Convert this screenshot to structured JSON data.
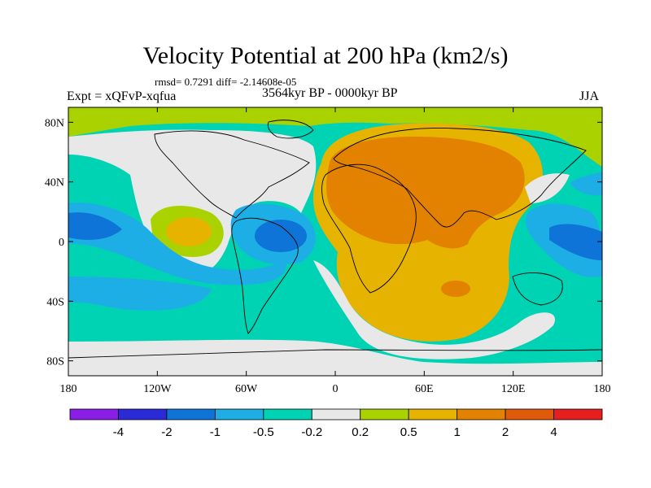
{
  "title": "Velocity Potential at 200 hPa (km2/s)",
  "stats": "rmsd= 0.7291 diff= -2.14608e-05",
  "experiment": "Expt = xQFvP-xqfua",
  "period": "3564kyr BP - 0000kyr BP",
  "season": "JJA",
  "map": {
    "lat_range": [
      -90,
      90
    ],
    "lon_range": [
      -180,
      180
    ],
    "lat_ticks": [
      {
        "value": 80,
        "label": "80N"
      },
      {
        "value": 40,
        "label": "40N"
      },
      {
        "value": 0,
        "label": "0"
      },
      {
        "value": -40,
        "label": "40S"
      },
      {
        "value": -80,
        "label": "80S"
      }
    ],
    "lon_ticks": [
      {
        "value": -180,
        "label": "180"
      },
      {
        "value": -120,
        "label": "120W"
      },
      {
        "value": -60,
        "label": "60W"
      },
      {
        "value": 0,
        "label": "0"
      },
      {
        "value": 60,
        "label": "60E"
      },
      {
        "value": 120,
        "label": "120E"
      },
      {
        "value": 180,
        "label": "180"
      }
    ]
  },
  "colorbar": {
    "colors": [
      "#8a1ee6",
      "#2a2ad6",
      "#0f74d8",
      "#1eaee6",
      "#00d2b4",
      "#e8e8e8",
      "#aad200",
      "#e6b400",
      "#e28200",
      "#e05a0a",
      "#e61e1e"
    ],
    "labels": [
      "-4",
      "-2",
      "-1",
      "-0.5",
      "-0.2",
      "0.2",
      "0.5",
      "1",
      "2",
      "4"
    ]
  }
}
